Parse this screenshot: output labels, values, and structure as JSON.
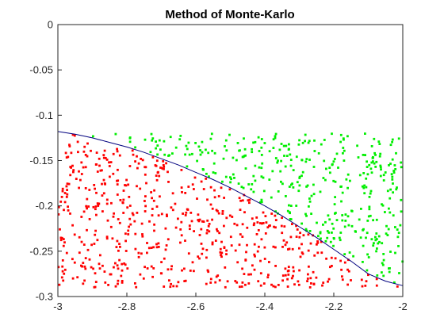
{
  "chart_data": {
    "type": "scatter",
    "title": "Method of Monte-Karlo",
    "xlabel": "",
    "ylabel": "",
    "xlim": [
      -3,
      -2
    ],
    "ylim": [
      -0.3,
      0
    ],
    "xticks": [
      "-3",
      "-2.8",
      "-2.6",
      "-2.4",
      "-2.2",
      "-2"
    ],
    "yticks": [
      "0",
      "-0.05",
      "-0.1",
      "-0.15",
      "-0.2",
      "-0.25",
      "-0.3"
    ],
    "grid": false,
    "curve": {
      "description": "boundary curve drawn in dark blue",
      "x": [
        -3.0,
        -2.95,
        -2.9,
        -2.85,
        -2.8,
        -2.75,
        -2.7,
        -2.65,
        -2.6,
        -2.55,
        -2.5,
        -2.45,
        -2.4,
        -2.35,
        -2.3,
        -2.25,
        -2.2,
        -2.15,
        -2.1,
        -2.05,
        -2.0
      ],
      "y": [
        -0.118,
        -0.121,
        -0.125,
        -0.13,
        -0.135,
        -0.141,
        -0.148,
        -0.155,
        -0.163,
        -0.171,
        -0.18,
        -0.19,
        -0.2,
        -0.211,
        -0.223,
        -0.235,
        -0.248,
        -0.261,
        -0.275,
        -0.283,
        -0.288
      ],
      "color": "#00007f"
    },
    "sample_region": {
      "x": [
        -3,
        -2
      ],
      "y": [
        -0.29,
        -0.12
      ]
    },
    "sample_count": 1000,
    "series": [
      {
        "name": "",
        "color": "#ff0000",
        "rule": "below curve"
      },
      {
        "name": "",
        "color": "#00ee00",
        "rule": "above curve"
      }
    ],
    "axis_line": {
      "y": 0,
      "color": "#00007f"
    }
  }
}
